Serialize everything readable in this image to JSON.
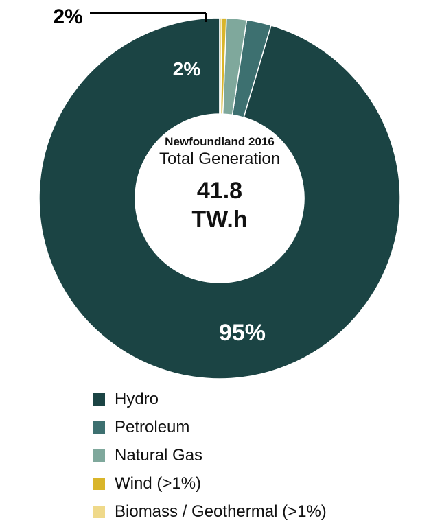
{
  "chart_data": {
    "type": "pie",
    "donut": true,
    "center": {
      "subtitle": "Newfoundland 2016",
      "title": "Total Generation",
      "value": "41.8",
      "unit": "TW.h"
    },
    "slices": [
      {
        "name": "Hydro",
        "value": 95.4,
        "label": "95%",
        "color": "#1b4444"
      },
      {
        "name": "Petroleum",
        "value": 2.2,
        "label": "2%",
        "color": "#3d7070"
      },
      {
        "name": "Natural Gas",
        "value": 1.8,
        "label": "2%",
        "color": "#7fa89c"
      },
      {
        "name": "Wind (>1%)",
        "value": 0.4,
        "label": "",
        "color": "#d9b52a"
      },
      {
        "name": "Biomass / Geothermal (>1%)",
        "value": 0.2,
        "label": "",
        "color": "#efd98a"
      }
    ],
    "legend_position": "bottom-left"
  }
}
